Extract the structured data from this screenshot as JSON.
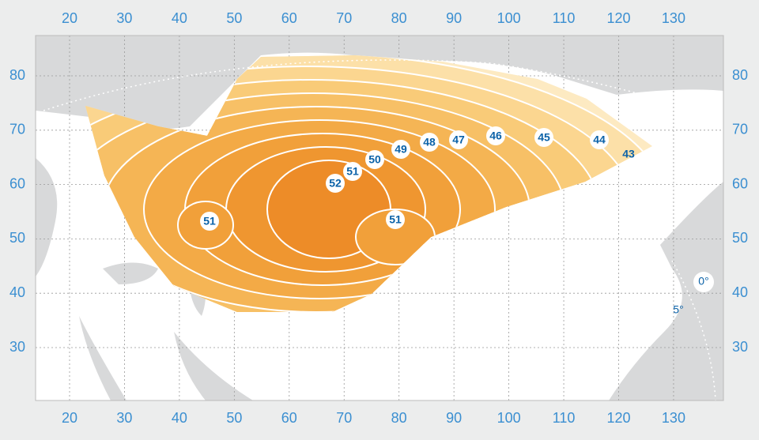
{
  "longitude_labels": [
    20,
    30,
    40,
    50,
    60,
    70,
    80,
    90,
    100,
    110,
    120,
    130
  ],
  "latitude_labels": [
    80,
    70,
    60,
    50,
    40,
    30
  ],
  "contour_labels": [
    "51",
    "52",
    "51",
    "50",
    "49",
    "48",
    "47",
    "46",
    "45",
    "44",
    "43",
    "51"
  ],
  "elevation_labels": [
    "0°",
    "5°"
  ]
}
